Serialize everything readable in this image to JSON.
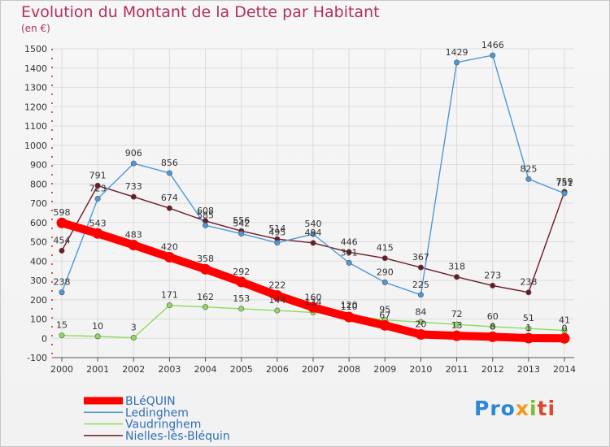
{
  "title": "Evolution du Montant de la Dette par Habitant",
  "unit": "(en €)",
  "logo": {
    "p1": "Pro",
    "p2": "x",
    "p3": "i",
    "p4": "ti"
  },
  "chart_data": {
    "type": "line",
    "title": "Evolution du Montant de la Dette par Habitant",
    "ylabel": "(en €)",
    "xlabel": "",
    "x": [
      2000,
      2001,
      2002,
      2003,
      2004,
      2005,
      2006,
      2007,
      2008,
      2009,
      2010,
      2011,
      2012,
      2013,
      2014
    ],
    "ylim": [
      -100,
      1500
    ],
    "yticks": [
      -100,
      0,
      100,
      200,
      300,
      400,
      500,
      600,
      700,
      800,
      900,
      1000,
      1100,
      1200,
      1300,
      1400,
      1500
    ],
    "grid": true,
    "legend_position": "bottom-left",
    "series": [
      {
        "name": "BLéQUIN",
        "color": "#ff0000",
        "values": [
          598,
          543,
          483,
          420,
          358,
          292,
          222,
          160,
          110,
          67,
          20,
          13,
          8,
          1,
          0
        ]
      },
      {
        "name": "Ledinghem",
        "color": "#4f98d6",
        "values": [
          238,
          723,
          906,
          856,
          585,
          542,
          495,
          540,
          391,
          290,
          225,
          1429,
          1466,
          825,
          751
        ]
      },
      {
        "name": "Vaudringhem",
        "color": "#8edb5e",
        "values": [
          15,
          10,
          3,
          171,
          162,
          153,
          144,
          134,
          120,
          95,
          84,
          72,
          60,
          51,
          41
        ]
      },
      {
        "name": "Nielles-lès-Bléquin",
        "color": "#6e1a24",
        "values": [
          454,
          791,
          733,
          674,
          608,
          556,
          514,
          494,
          446,
          415,
          367,
          318,
          273,
          238,
          759
        ]
      }
    ],
    "point_labels": {
      "BLéQUIN": [
        "598",
        "543",
        "483",
        "420",
        "358",
        "292",
        "222",
        "160",
        "110",
        "67",
        "20",
        "13",
        "8",
        "1",
        "0"
      ],
      "Ledinghem": [
        "238",
        "723",
        "906",
        "856",
        "585",
        "542",
        "495",
        "540",
        "391",
        "290",
        "225",
        "1429",
        "1466",
        "825",
        "751"
      ],
      "Vaudringhem": [
        "15",
        "10",
        "3",
        "171",
        "162",
        "153",
        "144",
        "134",
        "120",
        "95",
        "84",
        "72",
        "60",
        "51",
        "41"
      ],
      "Nielles-lès-Bléquin": [
        "454",
        "791",
        "733",
        "674",
        "608",
        "556",
        "514",
        "494",
        "446",
        "415",
        "367",
        "318",
        "273",
        "238",
        "759"
      ]
    }
  }
}
